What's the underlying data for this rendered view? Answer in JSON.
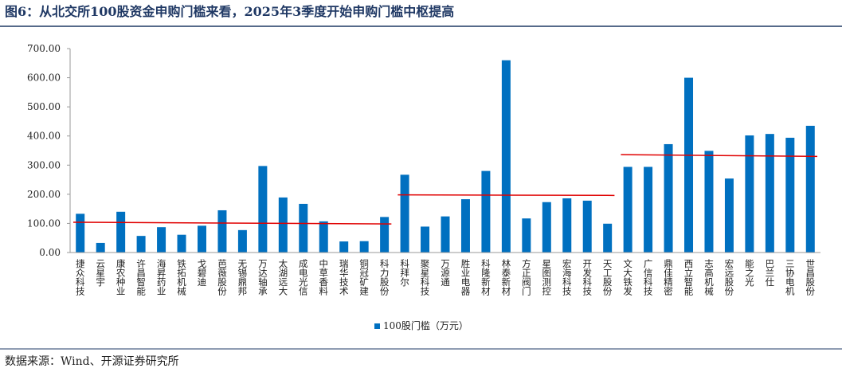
{
  "chart_data": {
    "type": "bar",
    "title": "图6：从北交所100股资金申购门槛来看，2025年3季度开始申购门槛中枢提高",
    "source": "数据来源：Wind、开源证券研究所",
    "categories": [
      "捷众科技",
      "云星宇",
      "康农种业",
      "许昌智能",
      "海昇药业",
      "铁拓机械",
      "戈碧迪",
      "芭薇股份",
      "无锡鼎邦",
      "万达轴承",
      "太湖远大",
      "成电光信",
      "中草香料",
      "瑞华技术",
      "铜冠矿建",
      "科力股份",
      "科拜尔",
      "聚星科技",
      "万源通",
      "胜业电器",
      "科隆新材",
      "林泰新材",
      "方正阀门",
      "星图测控",
      "宏海科技",
      "开发科技",
      "天工股份",
      "文大铁发",
      "广信科技",
      "鼎佳精密",
      "西立智能",
      "志高机械",
      "宏远股份",
      "能之光",
      "巴兰仕",
      "三协电机",
      "世昌股份"
    ],
    "series": [
      {
        "name": "100股门槛（万元）",
        "color": "#0070c0",
        "values": [
          133,
          33,
          140,
          57,
          87,
          61,
          92,
          145,
          77,
          297,
          189,
          167,
          107,
          38,
          39,
          122,
          267,
          89,
          124,
          183,
          280,
          660,
          117,
          173,
          186,
          178,
          99,
          294,
          294,
          372,
          600,
          349,
          254,
          402,
          407,
          394,
          435
        ]
      }
    ],
    "reference_lines": [
      {
        "start": "捷众科技",
        "end": "科力股份",
        "values": [
          104,
          98
        ],
        "color": "#e00000"
      },
      {
        "start": "科拜尔",
        "end": "天工股份",
        "values": [
          198,
          196
        ],
        "color": "#e00000"
      },
      {
        "start": "文大铁发",
        "end": "世昌股份",
        "values": [
          336,
          330
        ],
        "color": "#e00000"
      }
    ],
    "ylim": [
      0,
      700
    ],
    "yticks": [
      {
        "value": 0,
        "label": "0.00"
      },
      {
        "value": 100,
        "label": "100.00"
      },
      {
        "value": 200,
        "label": "200.00"
      },
      {
        "value": 300,
        "label": "300.00"
      },
      {
        "value": 400,
        "label": "400.00"
      },
      {
        "value": 500,
        "label": "500.00"
      },
      {
        "value": 600,
        "label": "600.00"
      },
      {
        "value": 700,
        "label": "700.00"
      }
    ],
    "grid": false
  }
}
